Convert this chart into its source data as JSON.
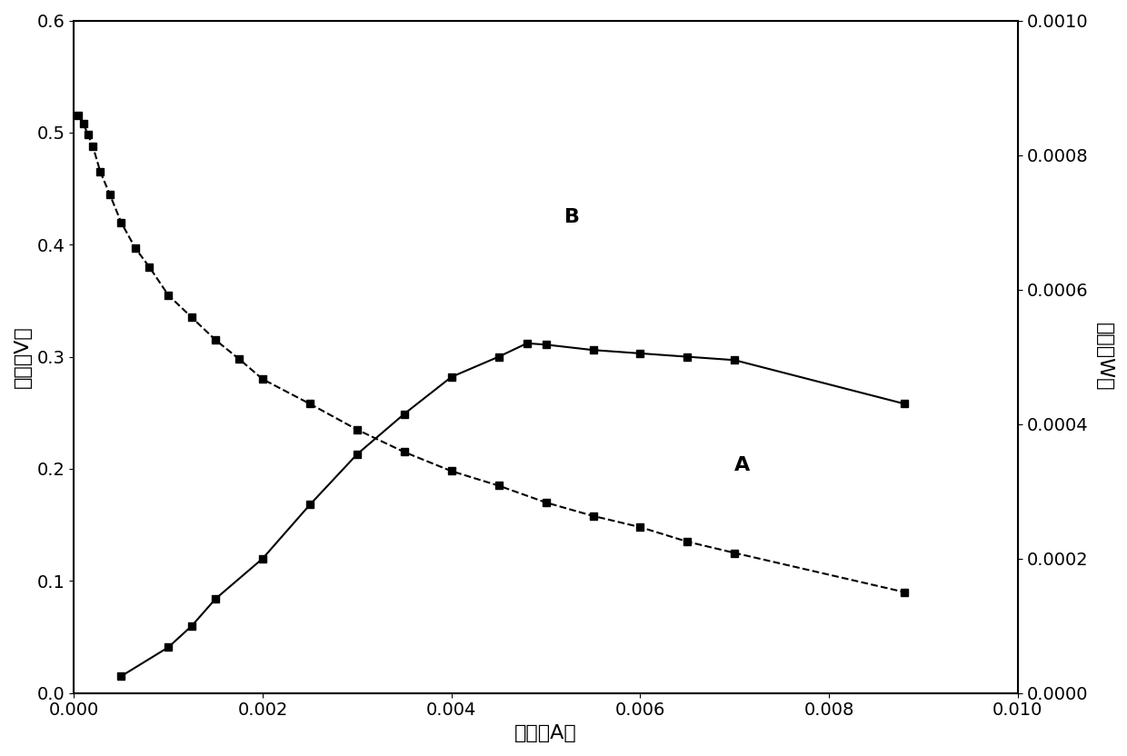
{
  "curve_A_x": [
    5e-05,
    0.0001,
    0.00015,
    0.0002,
    0.00028,
    0.00038,
    0.0005,
    0.00065,
    0.0008,
    0.001,
    0.00125,
    0.0015,
    0.00175,
    0.002,
    0.0025,
    0.003,
    0.0035,
    0.004,
    0.0045,
    0.005,
    0.0055,
    0.006,
    0.0065,
    0.007,
    0.0088
  ],
  "curve_A_y": [
    0.515,
    0.508,
    0.498,
    0.488,
    0.465,
    0.445,
    0.42,
    0.397,
    0.38,
    0.355,
    0.335,
    0.315,
    0.298,
    0.28,
    0.258,
    0.235,
    0.215,
    0.198,
    0.185,
    0.17,
    0.158,
    0.148,
    0.135,
    0.125,
    0.09
  ],
  "curve_B_x": [
    0.0005,
    0.001,
    0.00125,
    0.0015,
    0.002,
    0.0025,
    0.003,
    0.0035,
    0.004,
    0.0045,
    0.0048,
    0.005,
    0.0055,
    0.006,
    0.0065,
    0.007,
    0.0088
  ],
  "curve_B_y": [
    2.5e-05,
    6.8e-05,
    0.0001,
    0.00014,
    0.0002,
    0.00028,
    0.000355,
    0.000415,
    0.00047,
    0.0005,
    0.00052,
    0.000518,
    0.00051,
    0.000505,
    0.0005,
    0.000495,
    0.00043
  ],
  "xlabel": "电流（A）",
  "ylabel_left": "电压（V）",
  "ylabel_right": "功率（W）",
  "xlim": [
    0.0,
    0.01
  ],
  "ylim_left": [
    0.0,
    0.6
  ],
  "ylim_right": [
    0.0,
    0.001
  ],
  "xticks": [
    0.0,
    0.002,
    0.004,
    0.006,
    0.008,
    0.01
  ],
  "yticks_left": [
    0.0,
    0.1,
    0.2,
    0.3,
    0.4,
    0.5,
    0.6
  ],
  "yticks_right": [
    0.0,
    0.0002,
    0.0004,
    0.0006,
    0.0008,
    0.001
  ],
  "label_A": "A",
  "label_B": "B",
  "line_color": "#000000",
  "marker": "s",
  "markersize": 6,
  "linewidth": 1.5,
  "bg_color": "#ffffff",
  "font_size_tick": 14,
  "font_size_label": 16
}
